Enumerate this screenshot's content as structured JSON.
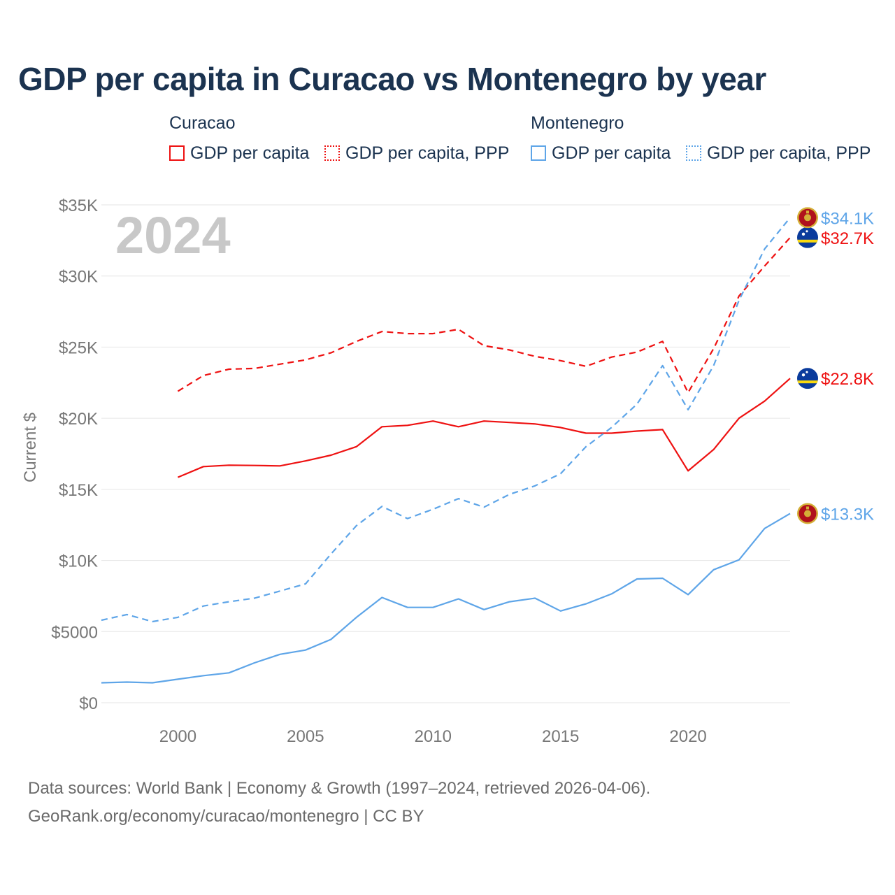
{
  "title": "GDP per capita in Curacao vs Montenegro by year",
  "legend": {
    "groups": [
      {
        "name": "Curacao",
        "color": "#ee1111",
        "items": [
          {
            "label": "GDP per capita",
            "style": "solid"
          },
          {
            "label": "GDP per capita, PPP",
            "style": "dotted"
          }
        ]
      },
      {
        "name": "Montenegro",
        "color": "#5ea5e8",
        "items": [
          {
            "label": "GDP per capita",
            "style": "solid"
          },
          {
            "label": "GDP per capita, PPP",
            "style": "dotted"
          }
        ]
      }
    ]
  },
  "chart_data": {
    "type": "line",
    "title": "GDP per capita in Curacao vs Montenegro by year",
    "xlabel": "",
    "ylabel": "Current $",
    "xlim": [
      1997,
      2024
    ],
    "ylim": [
      0,
      35000
    ],
    "yticks": [
      0,
      5000,
      10000,
      15000,
      20000,
      25000,
      30000,
      35000
    ],
    "ytick_labels": [
      "$0",
      "$5000",
      "$10K",
      "$15K",
      "$20K",
      "$25K",
      "$30K",
      "$35K"
    ],
    "xticks": [
      2000,
      2005,
      2010,
      2015,
      2020
    ],
    "xtick_labels": [
      "2000",
      "2005",
      "2010",
      "2015",
      "2020"
    ],
    "year_watermark": "2024",
    "grid": true,
    "series": [
      {
        "name": "Curacao GDP per capita",
        "country": "Curacao",
        "color": "#ee1111",
        "dash": "solid",
        "x": [
          2000,
          2001,
          2002,
          2003,
          2004,
          2005,
          2006,
          2007,
          2008,
          2009,
          2010,
          2011,
          2012,
          2013,
          2014,
          2015,
          2016,
          2017,
          2018,
          2019,
          2020,
          2021,
          2022,
          2023,
          2024
        ],
        "y": [
          15850,
          16600,
          16700,
          16680,
          16650,
          17000,
          17400,
          18000,
          19400,
          19500,
          19800,
          19400,
          19800,
          19700,
          19600,
          19350,
          18950,
          18950,
          19100,
          19200,
          16300,
          17800,
          20000,
          21200,
          22800
        ],
        "end_label": "$22.8K",
        "flag": "curacao-flag-icon"
      },
      {
        "name": "Curacao GDP per capita, PPP",
        "country": "Curacao",
        "color": "#ee1111",
        "dash": "dashed",
        "x": [
          2000,
          2001,
          2002,
          2003,
          2004,
          2005,
          2006,
          2007,
          2008,
          2009,
          2010,
          2011,
          2012,
          2013,
          2014,
          2015,
          2016,
          2017,
          2018,
          2019,
          2020,
          2021,
          2022,
          2023,
          2024
        ],
        "y": [
          21900,
          23000,
          23450,
          23500,
          23800,
          24100,
          24600,
          25400,
          26100,
          25950,
          25950,
          26250,
          25100,
          24800,
          24350,
          24050,
          23650,
          24300,
          24650,
          25400,
          21800,
          24900,
          28600,
          30700,
          32700
        ],
        "end_label": "$32.7K",
        "flag": "curacao-flag-icon"
      },
      {
        "name": "Montenegro GDP per capita",
        "country": "Montenegro",
        "color": "#5ea5e8",
        "dash": "solid",
        "x": [
          1997,
          1998,
          1999,
          2000,
          2001,
          2002,
          2003,
          2004,
          2005,
          2006,
          2007,
          2008,
          2009,
          2010,
          2011,
          2012,
          2013,
          2014,
          2015,
          2016,
          2017,
          2018,
          2019,
          2020,
          2021,
          2022,
          2023,
          2024
        ],
        "y": [
          1400,
          1450,
          1400,
          1650,
          1900,
          2100,
          2800,
          3400,
          3700,
          4450,
          6000,
          7400,
          6700,
          6700,
          7300,
          6550,
          7100,
          7350,
          6450,
          6950,
          7650,
          8700,
          8750,
          7600,
          9350,
          10050,
          12250,
          13300
        ],
        "end_label": "$13.3K",
        "flag": "montenegro-flag-icon"
      },
      {
        "name": "Montenegro GDP per capita, PPP",
        "country": "Montenegro",
        "color": "#5ea5e8",
        "dash": "dashed",
        "x": [
          1997,
          1998,
          1999,
          2000,
          2001,
          2002,
          2003,
          2004,
          2005,
          2006,
          2007,
          2008,
          2009,
          2010,
          2011,
          2012,
          2013,
          2014,
          2015,
          2016,
          2017,
          2018,
          2019,
          2020,
          2021,
          2022,
          2023,
          2024
        ],
        "y": [
          5800,
          6200,
          5700,
          6000,
          6800,
          7100,
          7350,
          7850,
          8350,
          10450,
          12450,
          13800,
          12950,
          13600,
          14350,
          13750,
          14650,
          15250,
          16100,
          18000,
          19350,
          21000,
          23700,
          20600,
          23700,
          28300,
          31900,
          34100
        ],
        "end_label": "$34.1K",
        "flag": "montenegro-flag-icon"
      }
    ]
  },
  "footer": {
    "line1": "Data sources: World Bank | Economy & Growth (1997–2024, retrieved 2026-04-06).",
    "line2": "GeoRank.org/economy/curacao/montenegro | CC BY"
  }
}
